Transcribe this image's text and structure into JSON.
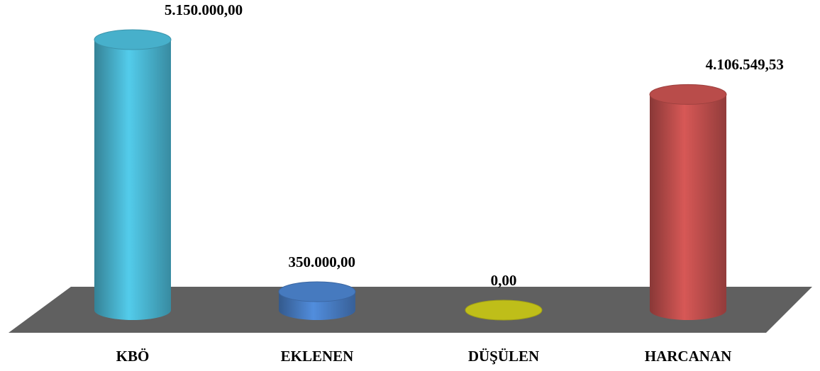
{
  "chart_data": {
    "type": "cylinder",
    "categories": [
      "KBÖ",
      "EKLENEN",
      "DÜŞÜLEN",
      "HARCANAN"
    ],
    "values": [
      5150000,
      350000,
      0,
      4106549.53
    ],
    "value_labels": [
      "5.150.000,00",
      "350.000,00",
      "0,00",
      "4.106.549,53"
    ],
    "colors": [
      "#4bb9d6",
      "#4a80c9",
      "#c9c81a",
      "#c3504e"
    ]
  }
}
